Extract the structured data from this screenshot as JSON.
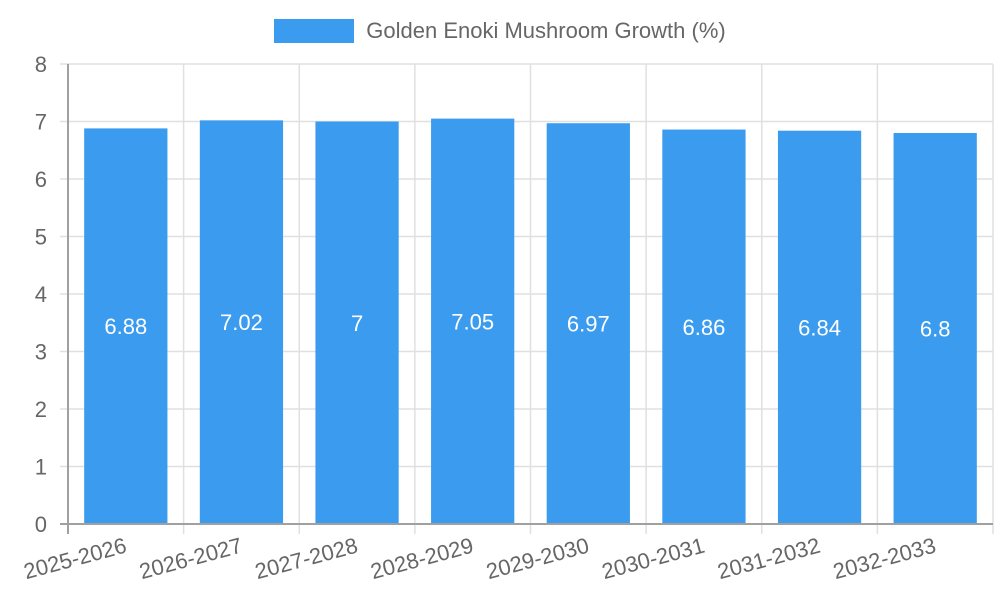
{
  "legend": {
    "label": "Golden Enoki Mushroom Growth (%)",
    "color": "#3a9bef"
  },
  "chart_data": {
    "type": "bar",
    "title": "",
    "xlabel": "",
    "ylabel": "",
    "categories": [
      "2025-2026",
      "2026-2027",
      "2027-2028",
      "2028-2029",
      "2029-2030",
      "2030-2031",
      "2031-2032",
      "2032-2033"
    ],
    "series": [
      {
        "name": "Golden Enoki Mushroom Growth (%)",
        "values": [
          6.88,
          7.02,
          7,
          7.05,
          6.97,
          6.86,
          6.84,
          6.8
        ],
        "color": "#3a9bef"
      }
    ],
    "data_labels": [
      "6.88",
      "7.02",
      "7",
      "7.05",
      "6.97",
      "6.86",
      "6.84",
      "6.8"
    ],
    "ylim": [
      0,
      8
    ],
    "yticks": [
      0,
      1,
      2,
      3,
      4,
      5,
      6,
      7,
      8
    ],
    "grid": true,
    "legend_position": "top"
  }
}
